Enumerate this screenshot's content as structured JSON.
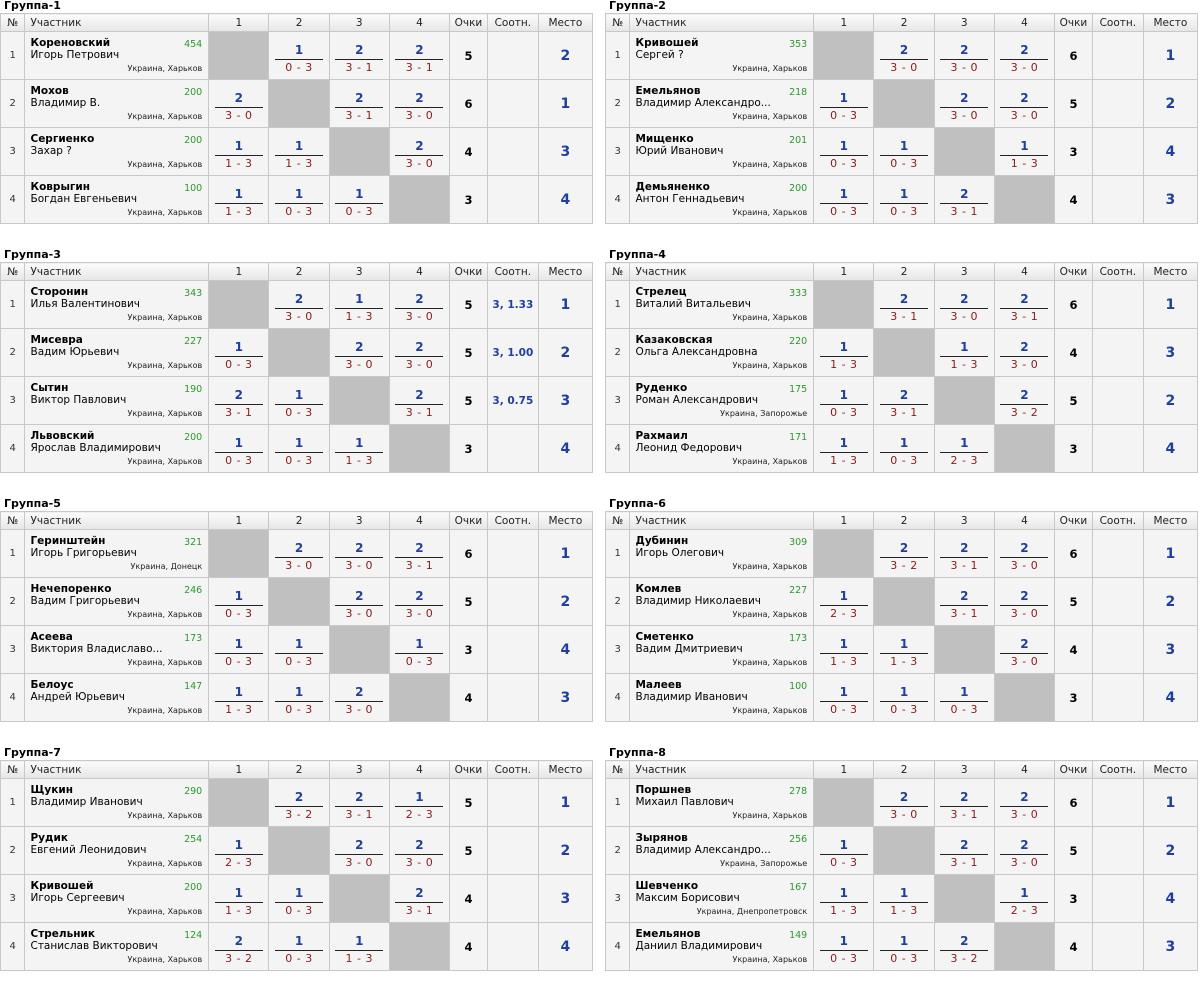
{
  "headers": {
    "num": "№",
    "player": "Участник",
    "c1": "1",
    "c2": "2",
    "c3": "3",
    "c4": "4",
    "points": "Очки",
    "tiebreak": "Соотн.",
    "place": "Место"
  },
  "colors": {
    "win": "#1f3f9f",
    "score": "#8a1a1a",
    "rating": "#2a9a2a",
    "self": "#c0c0c0"
  },
  "groups": [
    {
      "title": "Группа-1",
      "players": [
        {
          "num": "1",
          "surname": "Кореновский",
          "name": "Игорь Петрович",
          "rating": "454",
          "city": "Украина, Харьков",
          "results": [
            null,
            {
              "w": "1",
              "s": "0 - 3"
            },
            {
              "w": "2",
              "s": "3 - 1"
            },
            {
              "w": "2",
              "s": "3 - 1"
            }
          ],
          "points": "5",
          "tiebreak": "",
          "place": "2"
        },
        {
          "num": "2",
          "surname": "Мохов",
          "name": "Владимир В.",
          "rating": "200",
          "city": "Украина, Харьков",
          "results": [
            {
              "w": "2",
              "s": "3 - 0"
            },
            null,
            {
              "w": "2",
              "s": "3 - 1"
            },
            {
              "w": "2",
              "s": "3 - 0"
            }
          ],
          "points": "6",
          "tiebreak": "",
          "place": "1"
        },
        {
          "num": "3",
          "surname": "Сергиенко",
          "name": "Захар ?",
          "rating": "200",
          "city": "Украина, Харьков",
          "results": [
            {
              "w": "1",
              "s": "1 - 3"
            },
            {
              "w": "1",
              "s": "1 - 3"
            },
            null,
            {
              "w": "2",
              "s": "3 - 0"
            }
          ],
          "points": "4",
          "tiebreak": "",
          "place": "3"
        },
        {
          "num": "4",
          "surname": "Коврыгин",
          "name": "Богдан Евгеньевич",
          "rating": "100",
          "city": "Украина, Харьков",
          "results": [
            {
              "w": "1",
              "s": "1 - 3"
            },
            {
              "w": "1",
              "s": "0 - 3"
            },
            {
              "w": "1",
              "s": "0 - 3"
            },
            null
          ],
          "points": "3",
          "tiebreak": "",
          "place": "4"
        }
      ]
    },
    {
      "title": "Группа-2",
      "players": [
        {
          "num": "1",
          "surname": "Кривошей",
          "name": "Сергей ?",
          "rating": "353",
          "city": "Украина, Харьков",
          "results": [
            null,
            {
              "w": "2",
              "s": "3 - 0"
            },
            {
              "w": "2",
              "s": "3 - 0"
            },
            {
              "w": "2",
              "s": "3 - 0"
            }
          ],
          "points": "6",
          "tiebreak": "",
          "place": "1"
        },
        {
          "num": "2",
          "surname": "Емельянов",
          "name": "Владимир Александро...",
          "rating": "218",
          "city": "Украина, Харьков",
          "results": [
            {
              "w": "1",
              "s": "0 - 3"
            },
            null,
            {
              "w": "2",
              "s": "3 - 0"
            },
            {
              "w": "2",
              "s": "3 - 0"
            }
          ],
          "points": "5",
          "tiebreak": "",
          "place": "2"
        },
        {
          "num": "3",
          "surname": "Мищенко",
          "name": "Юрий Иванович",
          "rating": "201",
          "city": "Украина, Харьков",
          "results": [
            {
              "w": "1",
              "s": "0 - 3"
            },
            {
              "w": "1",
              "s": "0 - 3"
            },
            null,
            {
              "w": "1",
              "s": "1 - 3"
            }
          ],
          "points": "3",
          "tiebreak": "",
          "place": "4"
        },
        {
          "num": "4",
          "surname": "Демьяненко",
          "name": "Антон Геннадьевич",
          "rating": "200",
          "city": "Украина, Харьков",
          "results": [
            {
              "w": "1",
              "s": "0 - 3"
            },
            {
              "w": "1",
              "s": "0 - 3"
            },
            {
              "w": "2",
              "s": "3 - 1"
            },
            null
          ],
          "points": "4",
          "tiebreak": "",
          "place": "3"
        }
      ]
    },
    {
      "title": "Группа-3",
      "players": [
        {
          "num": "1",
          "surname": "Сторонин",
          "name": "Илья Валентинович",
          "rating": "343",
          "city": "Украина, Харьков",
          "results": [
            null,
            {
              "w": "2",
              "s": "3 - 0"
            },
            {
              "w": "1",
              "s": "1 - 3"
            },
            {
              "w": "2",
              "s": "3 - 0"
            }
          ],
          "points": "5",
          "tiebreak": "3, 1.33",
          "place": "1"
        },
        {
          "num": "2",
          "surname": "Мисевра",
          "name": "Вадим Юрьевич",
          "rating": "227",
          "city": "Украина, Харьков",
          "results": [
            {
              "w": "1",
              "s": "0 - 3"
            },
            null,
            {
              "w": "2",
              "s": "3 - 0"
            },
            {
              "w": "2",
              "s": "3 - 0"
            }
          ],
          "points": "5",
          "tiebreak": "3, 1.00",
          "place": "2"
        },
        {
          "num": "3",
          "surname": "Сытин",
          "name": "Виктор Павлович",
          "rating": "190",
          "city": "Украина, Харьков",
          "results": [
            {
              "w": "2",
              "s": "3 - 1"
            },
            {
              "w": "1",
              "s": "0 - 3"
            },
            null,
            {
              "w": "2",
              "s": "3 - 1"
            }
          ],
          "points": "5",
          "tiebreak": "3, 0.75",
          "place": "3"
        },
        {
          "num": "4",
          "surname": "Львовский",
          "name": "Ярослав Владимирович",
          "rating": "200",
          "city": "Украина, Харьков",
          "results": [
            {
              "w": "1",
              "s": "0 - 3"
            },
            {
              "w": "1",
              "s": "0 - 3"
            },
            {
              "w": "1",
              "s": "1 - 3"
            },
            null
          ],
          "points": "3",
          "tiebreak": "",
          "place": "4"
        }
      ]
    },
    {
      "title": "Группа-4",
      "players": [
        {
          "num": "1",
          "surname": "Стрелец",
          "name": "Виталий Витальевич",
          "rating": "333",
          "city": "Украина, Харьков",
          "results": [
            null,
            {
              "w": "2",
              "s": "3 - 1"
            },
            {
              "w": "2",
              "s": "3 - 0"
            },
            {
              "w": "2",
              "s": "3 - 1"
            }
          ],
          "points": "6",
          "tiebreak": "",
          "place": "1"
        },
        {
          "num": "2",
          "surname": "Казаковская",
          "name": "Ольга Александровна",
          "rating": "220",
          "city": "Украина, Харьков",
          "results": [
            {
              "w": "1",
              "s": "1 - 3"
            },
            null,
            {
              "w": "1",
              "s": "1 - 3"
            },
            {
              "w": "2",
              "s": "3 - 0"
            }
          ],
          "points": "4",
          "tiebreak": "",
          "place": "3"
        },
        {
          "num": "3",
          "surname": "Руденко",
          "name": "Роман Александрович",
          "rating": "175",
          "city": "Украина, Запорожье",
          "results": [
            {
              "w": "1",
              "s": "0 - 3"
            },
            {
              "w": "2",
              "s": "3 - 1"
            },
            null,
            {
              "w": "2",
              "s": "3 - 2"
            }
          ],
          "points": "5",
          "tiebreak": "",
          "place": "2"
        },
        {
          "num": "4",
          "surname": "Рахмаил",
          "name": "Леонид Федорович",
          "rating": "171",
          "city": "Украина, Харьков",
          "results": [
            {
              "w": "1",
              "s": "1 - 3"
            },
            {
              "w": "1",
              "s": "0 - 3"
            },
            {
              "w": "1",
              "s": "2 - 3"
            },
            null
          ],
          "points": "3",
          "tiebreak": "",
          "place": "4"
        }
      ]
    },
    {
      "title": "Группа-5",
      "players": [
        {
          "num": "1",
          "surname": "Геринштейн",
          "name": "Игорь Григорьевич",
          "rating": "321",
          "city": "Украина, Донецк",
          "results": [
            null,
            {
              "w": "2",
              "s": "3 - 0"
            },
            {
              "w": "2",
              "s": "3 - 0"
            },
            {
              "w": "2",
              "s": "3 - 1"
            }
          ],
          "points": "6",
          "tiebreak": "",
          "place": "1"
        },
        {
          "num": "2",
          "surname": "Нечепоренко",
          "name": "Вадим Григорьевич",
          "rating": "246",
          "city": "Украина, Харьков",
          "results": [
            {
              "w": "1",
              "s": "0 - 3"
            },
            null,
            {
              "w": "2",
              "s": "3 - 0"
            },
            {
              "w": "2",
              "s": "3 - 0"
            }
          ],
          "points": "5",
          "tiebreak": "",
          "place": "2"
        },
        {
          "num": "3",
          "surname": "Асеева",
          "name": "Виктория Владиславо...",
          "rating": "173",
          "city": "Украина, Харьков",
          "results": [
            {
              "w": "1",
              "s": "0 - 3"
            },
            {
              "w": "1",
              "s": "0 - 3"
            },
            null,
            {
              "w": "1",
              "s": "0 - 3"
            }
          ],
          "points": "3",
          "tiebreak": "",
          "place": "4"
        },
        {
          "num": "4",
          "surname": "Белоус",
          "name": "Андрей Юрьевич",
          "rating": "147",
          "city": "Украина, Харьков",
          "results": [
            {
              "w": "1",
              "s": "1 - 3"
            },
            {
              "w": "1",
              "s": "0 - 3"
            },
            {
              "w": "2",
              "s": "3 - 0"
            },
            null
          ],
          "points": "4",
          "tiebreak": "",
          "place": "3"
        }
      ]
    },
    {
      "title": "Группа-6",
      "players": [
        {
          "num": "1",
          "surname": "Дубинин",
          "name": "Игорь Олегович",
          "rating": "309",
          "city": "Украина, Харьков",
          "results": [
            null,
            {
              "w": "2",
              "s": "3 - 2"
            },
            {
              "w": "2",
              "s": "3 - 1"
            },
            {
              "w": "2",
              "s": "3 - 0"
            }
          ],
          "points": "6",
          "tiebreak": "",
          "place": "1"
        },
        {
          "num": "2",
          "surname": "Комлев",
          "name": "Владимир Николаевич",
          "rating": "227",
          "city": "Украина, Харьков",
          "results": [
            {
              "w": "1",
              "s": "2 - 3"
            },
            null,
            {
              "w": "2",
              "s": "3 - 1"
            },
            {
              "w": "2",
              "s": "3 - 0"
            }
          ],
          "points": "5",
          "tiebreak": "",
          "place": "2"
        },
        {
          "num": "3",
          "surname": "Сметенко",
          "name": "Вадим Дмитриевич",
          "rating": "173",
          "city": "Украина, Харьков",
          "results": [
            {
              "w": "1",
              "s": "1 - 3"
            },
            {
              "w": "1",
              "s": "1 - 3"
            },
            null,
            {
              "w": "2",
              "s": "3 - 0"
            }
          ],
          "points": "4",
          "tiebreak": "",
          "place": "3"
        },
        {
          "num": "4",
          "surname": "Малеев",
          "name": "Владимир Иванович",
          "rating": "100",
          "city": "Украина, Харьков",
          "results": [
            {
              "w": "1",
              "s": "0 - 3"
            },
            {
              "w": "1",
              "s": "0 - 3"
            },
            {
              "w": "1",
              "s": "0 - 3"
            },
            null
          ],
          "points": "3",
          "tiebreak": "",
          "place": "4"
        }
      ]
    },
    {
      "title": "Группа-7",
      "players": [
        {
          "num": "1",
          "surname": "Щукин",
          "name": "Владимир Иванович",
          "rating": "290",
          "city": "Украина, Харьков",
          "results": [
            null,
            {
              "w": "2",
              "s": "3 - 2"
            },
            {
              "w": "2",
              "s": "3 - 1"
            },
            {
              "w": "1",
              "s": "2 - 3"
            }
          ],
          "points": "5",
          "tiebreak": "",
          "place": "1"
        },
        {
          "num": "2",
          "surname": "Рудик",
          "name": "Евгений Леонидович",
          "rating": "254",
          "city": "Украина, Харьков",
          "results": [
            {
              "w": "1",
              "s": "2 - 3"
            },
            null,
            {
              "w": "2",
              "s": "3 - 0"
            },
            {
              "w": "2",
              "s": "3 - 0"
            }
          ],
          "points": "5",
          "tiebreak": "",
          "place": "2"
        },
        {
          "num": "3",
          "surname": "Кривошей",
          "name": "Игорь Сергеевич",
          "rating": "200",
          "city": "Украина, Харьков",
          "results": [
            {
              "w": "1",
              "s": "1 - 3"
            },
            {
              "w": "1",
              "s": "0 - 3"
            },
            null,
            {
              "w": "2",
              "s": "3 - 1"
            }
          ],
          "points": "4",
          "tiebreak": "",
          "place": "3"
        },
        {
          "num": "4",
          "surname": "Стрельник",
          "name": "Станислав Викторович",
          "rating": "124",
          "city": "Украина, Харьков",
          "results": [
            {
              "w": "2",
              "s": "3 - 2"
            },
            {
              "w": "1",
              "s": "0 - 3"
            },
            {
              "w": "1",
              "s": "1 - 3"
            },
            null
          ],
          "points": "4",
          "tiebreak": "",
          "place": "4"
        }
      ]
    },
    {
      "title": "Группа-8",
      "players": [
        {
          "num": "1",
          "surname": "Поршнев",
          "name": "Михаил Павлович",
          "rating": "278",
          "city": "Украина, Харьков",
          "results": [
            null,
            {
              "w": "2",
              "s": "3 - 0"
            },
            {
              "w": "2",
              "s": "3 - 1"
            },
            {
              "w": "2",
              "s": "3 - 0"
            }
          ],
          "points": "6",
          "tiebreak": "",
          "place": "1"
        },
        {
          "num": "2",
          "surname": "Зырянов",
          "name": "Владимир Александро...",
          "rating": "256",
          "city": "Украина, Запорожье",
          "results": [
            {
              "w": "1",
              "s": "0 - 3"
            },
            null,
            {
              "w": "2",
              "s": "3 - 1"
            },
            {
              "w": "2",
              "s": "3 - 0"
            }
          ],
          "points": "5",
          "tiebreak": "",
          "place": "2"
        },
        {
          "num": "3",
          "surname": "Шевченко",
          "name": "Максим Борисович",
          "rating": "167",
          "city": "Украина, Днепропетровск",
          "results": [
            {
              "w": "1",
              "s": "1 - 3"
            },
            {
              "w": "1",
              "s": "1 - 3"
            },
            null,
            {
              "w": "1",
              "s": "2 - 3"
            }
          ],
          "points": "3",
          "tiebreak": "",
          "place": "4"
        },
        {
          "num": "4",
          "surname": "Емельянов",
          "name": "Даниил Владимирович",
          "rating": "149",
          "city": "Украина, Харьков",
          "results": [
            {
              "w": "1",
              "s": "0 - 3"
            },
            {
              "w": "1",
              "s": "0 - 3"
            },
            {
              "w": "2",
              "s": "3 - 2"
            },
            null
          ],
          "points": "4",
          "tiebreak": "",
          "place": "3"
        }
      ]
    }
  ]
}
